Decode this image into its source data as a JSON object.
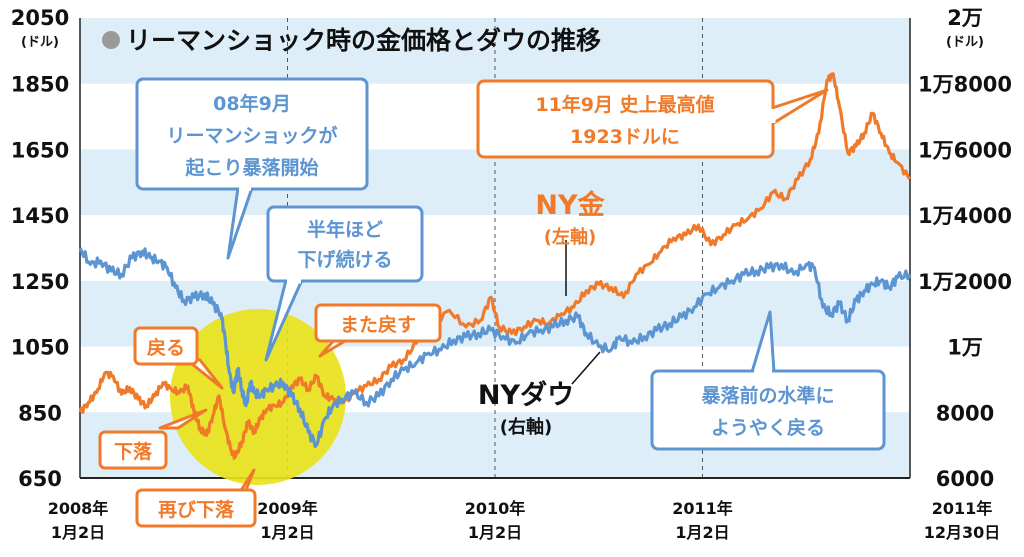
{
  "chart_data": {
    "type": "line",
    "title": "リーマンショック時の金価格とダウの推移",
    "left_axis": {
      "top_label": "2050",
      "unit": "(ドル)",
      "ticks": [
        "1850",
        "1650",
        "1450",
        "1250",
        "1050",
        "850",
        "650"
      ],
      "tick_values": [
        1850,
        1650,
        1450,
        1250,
        1050,
        850,
        650
      ],
      "range": [
        650,
        2050
      ]
    },
    "right_axis": {
      "top_label": "2万",
      "unit": "(ドル)",
      "ticks": [
        "1万8000",
        "1万6000",
        "1万4000",
        "1万2000",
        "1万",
        "8000",
        "6000"
      ],
      "tick_values": [
        18000,
        16000,
        14000,
        12000,
        10000,
        8000,
        6000
      ],
      "range": [
        6000,
        20000
      ]
    },
    "x_ticks": [
      {
        "line1": "2008年",
        "line2": "1月2日",
        "t": 0
      },
      {
        "line1": "2009年",
        "line2": "1月2日",
        "t": 1
      },
      {
        "line1": "2010年",
        "line2": "1月2日",
        "t": 2
      },
      {
        "line1": "2011年",
        "line2": "1月2日",
        "t": 3
      },
      {
        "line1": "2011年",
        "line2": "12月30日",
        "t": 4
      }
    ],
    "series": [
      {
        "name": "NY金",
        "axis": "left",
        "color": "#f07a2a",
        "points": [
          [
            0.0,
            850
          ],
          [
            0.04,
            880
          ],
          [
            0.08,
            910
          ],
          [
            0.12,
            970
          ],
          [
            0.16,
            960
          ],
          [
            0.2,
            905
          ],
          [
            0.24,
            925
          ],
          [
            0.28,
            890
          ],
          [
            0.32,
            870
          ],
          [
            0.36,
            900
          ],
          [
            0.4,
            940
          ],
          [
            0.44,
            920
          ],
          [
            0.48,
            910
          ],
          [
            0.52,
            930
          ],
          [
            0.55,
            850
          ],
          [
            0.58,
            800
          ],
          [
            0.61,
            780
          ],
          [
            0.64,
            840
          ],
          [
            0.67,
            900
          ],
          [
            0.7,
            800
          ],
          [
            0.73,
            730
          ],
          [
            0.75,
            715
          ],
          [
            0.78,
            760
          ],
          [
            0.81,
            820
          ],
          [
            0.84,
            790
          ],
          [
            0.87,
            830
          ],
          [
            0.9,
            860
          ],
          [
            0.94,
            870
          ],
          [
            0.98,
            880
          ],
          [
            1.02,
            930
          ],
          [
            1.06,
            950
          ],
          [
            1.1,
            920
          ],
          [
            1.14,
            960
          ],
          [
            1.18,
            900
          ],
          [
            1.22,
            890
          ],
          [
            1.27,
            880
          ],
          [
            1.32,
            910
          ],
          [
            1.38,
            930
          ],
          [
            1.44,
            950
          ],
          [
            1.5,
            990
          ],
          [
            1.56,
            1010
          ],
          [
            1.62,
            1060
          ],
          [
            1.7,
            1120
          ],
          [
            1.78,
            1160
          ],
          [
            1.86,
            1110
          ],
          [
            1.93,
            1130
          ],
          [
            1.98,
            1200
          ],
          [
            2.02,
            1110
          ],
          [
            2.08,
            1090
          ],
          [
            2.14,
            1110
          ],
          [
            2.2,
            1130
          ],
          [
            2.26,
            1120
          ],
          [
            2.32,
            1150
          ],
          [
            2.38,
            1170
          ],
          [
            2.44,
            1220
          ],
          [
            2.5,
            1240
          ],
          [
            2.56,
            1230
          ],
          [
            2.62,
            1200
          ],
          [
            2.68,
            1270
          ],
          [
            2.74,
            1300
          ],
          [
            2.8,
            1340
          ],
          [
            2.86,
            1380
          ],
          [
            2.92,
            1390
          ],
          [
            2.98,
            1420
          ],
          [
            3.04,
            1360
          ],
          [
            3.1,
            1390
          ],
          [
            3.16,
            1420
          ],
          [
            3.22,
            1440
          ],
          [
            3.28,
            1470
          ],
          [
            3.34,
            1520
          ],
          [
            3.4,
            1500
          ],
          [
            3.46,
            1560
          ],
          [
            3.52,
            1620
          ],
          [
            3.56,
            1700
          ],
          [
            3.6,
            1860
          ],
          [
            3.63,
            1880
          ],
          [
            3.66,
            1780
          ],
          [
            3.7,
            1640
          ],
          [
            3.74,
            1660
          ],
          [
            3.78,
            1700
          ],
          [
            3.82,
            1760
          ],
          [
            3.86,
            1700
          ],
          [
            3.9,
            1640
          ],
          [
            3.94,
            1610
          ],
          [
            4.0,
            1560
          ]
        ]
      },
      {
        "name": "NYダウ",
        "axis": "right",
        "color": "#5c95d1",
        "points": [
          [
            0.0,
            13000
          ],
          [
            0.05,
            12500
          ],
          [
            0.1,
            12600
          ],
          [
            0.15,
            12300
          ],
          [
            0.2,
            12200
          ],
          [
            0.25,
            12700
          ],
          [
            0.3,
            12900
          ],
          [
            0.34,
            12700
          ],
          [
            0.38,
            12600
          ],
          [
            0.42,
            12400
          ],
          [
            0.46,
            11800
          ],
          [
            0.5,
            11400
          ],
          [
            0.55,
            11500
          ],
          [
            0.6,
            11600
          ],
          [
            0.64,
            11300
          ],
          [
            0.68,
            11000
          ],
          [
            0.7,
            10200
          ],
          [
            0.72,
            9200
          ],
          [
            0.74,
            8600
          ],
          [
            0.76,
            9300
          ],
          [
            0.78,
            8700
          ],
          [
            0.8,
            8200
          ],
          [
            0.82,
            8900
          ],
          [
            0.84,
            8600
          ],
          [
            0.87,
            8500
          ],
          [
            0.9,
            8700
          ],
          [
            0.94,
            8800
          ],
          [
            0.98,
            8900
          ],
          [
            1.02,
            8500
          ],
          [
            1.06,
            8100
          ],
          [
            1.1,
            7400
          ],
          [
            1.14,
            7000
          ],
          [
            1.18,
            7800
          ],
          [
            1.22,
            8200
          ],
          [
            1.26,
            8400
          ],
          [
            1.32,
            8600
          ],
          [
            1.38,
            8300
          ],
          [
            1.44,
            8500
          ],
          [
            1.5,
            9000
          ],
          [
            1.56,
            9300
          ],
          [
            1.62,
            9500
          ],
          [
            1.68,
            9800
          ],
          [
            1.74,
            9900
          ],
          [
            1.8,
            10200
          ],
          [
            1.86,
            10300
          ],
          [
            1.92,
            10400
          ],
          [
            1.98,
            10500
          ],
          [
            2.04,
            10300
          ],
          [
            2.1,
            10100
          ],
          [
            2.16,
            10400
          ],
          [
            2.22,
            10500
          ],
          [
            2.28,
            10600
          ],
          [
            2.34,
            10800
          ],
          [
            2.4,
            10900
          ],
          [
            2.44,
            10400
          ],
          [
            2.5,
            10000
          ],
          [
            2.56,
            9900
          ],
          [
            2.6,
            10300
          ],
          [
            2.66,
            10100
          ],
          [
            2.72,
            10300
          ],
          [
            2.78,
            10500
          ],
          [
            2.84,
            10700
          ],
          [
            2.9,
            10900
          ],
          [
            2.96,
            11200
          ],
          [
            3.02,
            11600
          ],
          [
            3.08,
            11800
          ],
          [
            3.14,
            12000
          ],
          [
            3.2,
            12200
          ],
          [
            3.26,
            12300
          ],
          [
            3.32,
            12400
          ],
          [
            3.38,
            12500
          ],
          [
            3.44,
            12200
          ],
          [
            3.5,
            12500
          ],
          [
            3.54,
            12400
          ],
          [
            3.58,
            11200
          ],
          [
            3.62,
            11000
          ],
          [
            3.66,
            11300
          ],
          [
            3.7,
            10800
          ],
          [
            3.74,
            11400
          ],
          [
            3.78,
            11700
          ],
          [
            3.82,
            11900
          ],
          [
            3.86,
            12000
          ],
          [
            3.9,
            11800
          ],
          [
            3.94,
            12100
          ],
          [
            4.0,
            12200
          ]
        ]
      }
    ],
    "annotations": [
      {
        "id": "lehman",
        "lines": [
          "08年9月",
          "リーマンショックが",
          "起こり暴落開始"
        ],
        "color": "#5c95d1"
      },
      {
        "id": "half-year",
        "lines": [
          "半年ほど",
          "下げ続ける"
        ],
        "color": "#5c95d1"
      },
      {
        "id": "recover",
        "lines": [
          "暴落前の水準に",
          "ようやく戻る"
        ],
        "color": "#5c95d1"
      },
      {
        "id": "peak",
        "lines": [
          "11年9月 史上最高値",
          "1923ドルに"
        ],
        "color": "#f07a2a"
      },
      {
        "id": "modoru",
        "lines": [
          "戻る"
        ],
        "color": "#f07a2a"
      },
      {
        "id": "geraku",
        "lines": [
          "下落"
        ],
        "color": "#f07a2a"
      },
      {
        "id": "mata",
        "lines": [
          "また戻す"
        ],
        "color": "#f07a2a"
      },
      {
        "id": "futatabi",
        "lines": [
          "再び下落"
        ],
        "color": "#f07a2a"
      }
    ],
    "series_labels": {
      "gold": {
        "name": "NY金",
        "sub": "(左軸)"
      },
      "dow": {
        "name": "NYダウ",
        "sub": "(右軸)"
      }
    }
  }
}
